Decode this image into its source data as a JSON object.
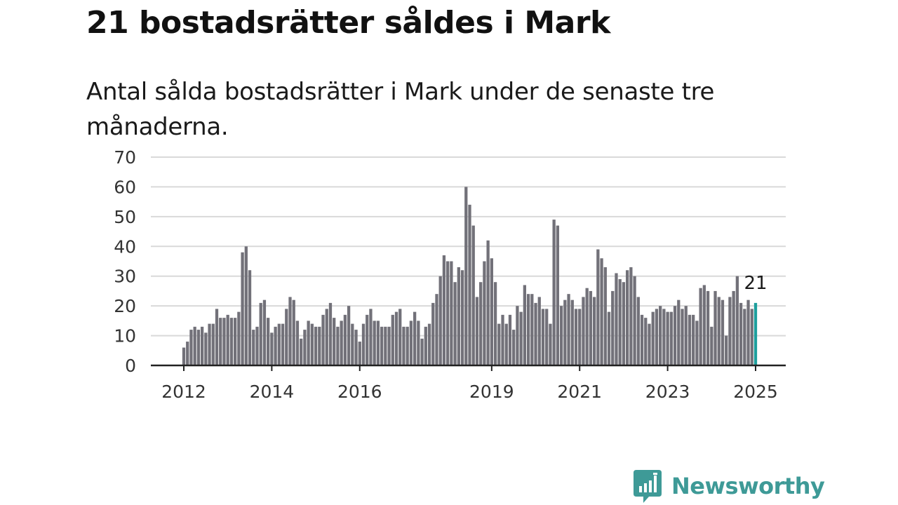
{
  "title": "21 bostadsrätter såldes i Mark",
  "subtitle": "Antal sålda bostadsrätter i Mark under de senaste tre månaderna.",
  "logo": {
    "text": "Newsworthy",
    "icon": "newsworthy-bar-chart-icon",
    "color": "#3e9a97"
  },
  "colors": {
    "bar": "#727179",
    "highlight": "#1e9f9d",
    "grid": "#d9d9d9",
    "axis": "#222222"
  },
  "chart_data": {
    "type": "bar",
    "x_start": "2012-01",
    "y_ticks": [
      0,
      10,
      20,
      30,
      40,
      50,
      60,
      70
    ],
    "x_ticks": [
      "2012",
      "2014",
      "2016",
      "2019",
      "2021",
      "2023",
      "2025"
    ],
    "ylim": [
      0,
      70
    ],
    "grid": true,
    "highlight_label": "21",
    "values": [
      6,
      8,
      12,
      13,
      12,
      13,
      11,
      14,
      14,
      19,
      16,
      16,
      17,
      16,
      16,
      18,
      38,
      40,
      32,
      12,
      13,
      21,
      22,
      16,
      11,
      13,
      14,
      14,
      19,
      23,
      22,
      15,
      9,
      12,
      15,
      14,
      13,
      13,
      17,
      19,
      21,
      16,
      13,
      15,
      17,
      20,
      14,
      12,
      8,
      14,
      17,
      19,
      15,
      15,
      13,
      13,
      13,
      17,
      18,
      19,
      13,
      13,
      15,
      18,
      15,
      9,
      13,
      14,
      21,
      24,
      30,
      37,
      35,
      35,
      28,
      33,
      32,
      60,
      54,
      47,
      23,
      28,
      35,
      42,
      36,
      28,
      14,
      17,
      14,
      17,
      12,
      20,
      18,
      27,
      24,
      24,
      21,
      23,
      19,
      19,
      14,
      49,
      47,
      20,
      22,
      24,
      22,
      19,
      19,
      23,
      26,
      25,
      23,
      39,
      36,
      33,
      18,
      25,
      31,
      29,
      28,
      32,
      33,
      30,
      23,
      17,
      16,
      14,
      18,
      19,
      20,
      19,
      18,
      18,
      20,
      22,
      19,
      20,
      17,
      17,
      15,
      26,
      27,
      25,
      13,
      25,
      23,
      22,
      10,
      23,
      25,
      30,
      21,
      19,
      22,
      19,
      21
    ]
  }
}
